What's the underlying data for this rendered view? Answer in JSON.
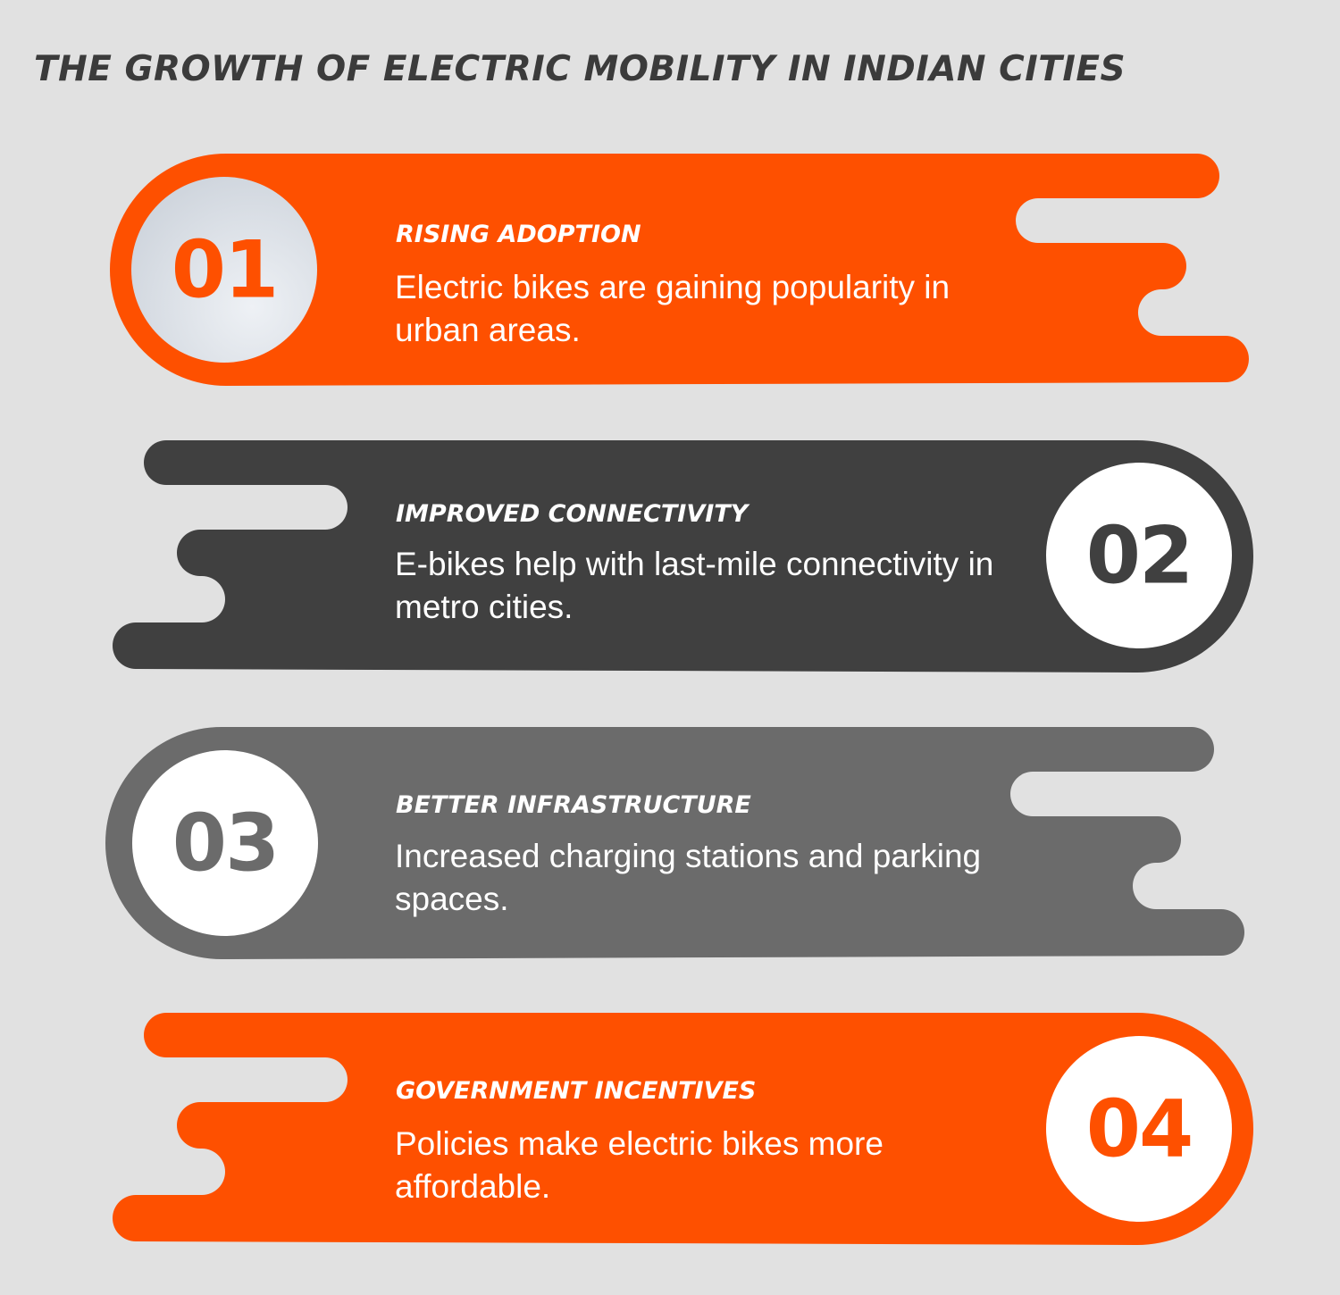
{
  "title": "THE GROWTH OF ELECTRIC MOBILITY IN INDIAN CITIES",
  "colors": {
    "background": "#e1e1e1",
    "orange": "#fe5000",
    "dark_gray": "#404040",
    "mid_gray": "#6b6b6b",
    "white": "#ffffff",
    "badge_light": "#e4e8ee"
  },
  "steps": [
    {
      "number": "01",
      "heading": "RISING ADOPTION",
      "text": "Electric bikes are gaining popularity in urban areas.",
      "color": "#fe5000"
    },
    {
      "number": "02",
      "heading": "IMPROVED CONNECTIVITY",
      "text": "E-bikes help with last-mile connectivity in metro cities.",
      "color": "#404040"
    },
    {
      "number": "03",
      "heading": "BETTER INFRASTRUCTURE",
      "text": "Increased charging stations and parking spaces.",
      "color": "#6b6b6b"
    },
    {
      "number": "04",
      "heading": "GOVERNMENT INCENTIVES",
      "text": "Policies make electric bikes more affordable.",
      "color": "#fe5000"
    }
  ]
}
